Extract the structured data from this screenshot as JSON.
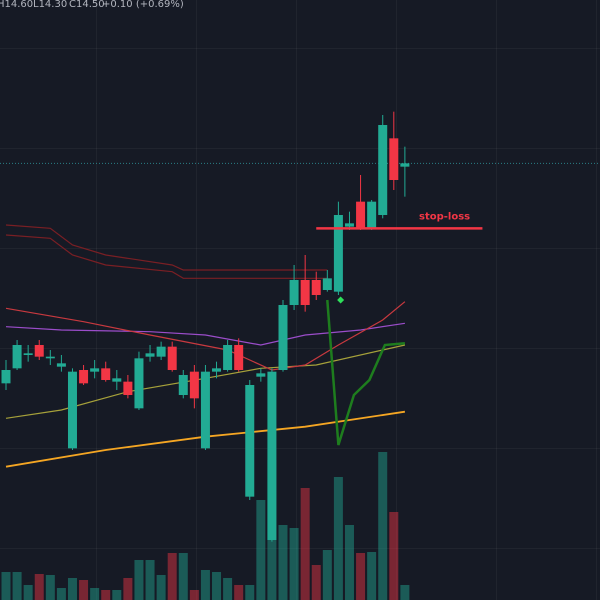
{
  "chart_data": {
    "type": "candlestick",
    "header": {
      "high": "H14.60",
      "low": "L14.30",
      "close": "C14.50",
      "change": "+0.10 (+0.69%)"
    },
    "ylim": [
      11.88,
      15.48
    ],
    "up_color": "#22ab94",
    "down_color": "#f23645",
    "candles": [
      [
        13.18,
        13.32,
        13.14,
        13.26
      ],
      [
        13.27,
        13.44,
        13.26,
        13.41
      ],
      [
        13.35,
        13.41,
        13.31,
        13.36
      ],
      [
        13.41,
        13.44,
        13.32,
        13.34
      ],
      [
        13.33,
        13.38,
        13.29,
        13.34
      ],
      [
        13.28,
        13.35,
        13.25,
        13.3
      ],
      [
        12.79,
        13.27,
        12.78,
        13.25
      ],
      [
        13.26,
        13.29,
        13.17,
        13.18
      ],
      [
        13.25,
        13.32,
        13.21,
        13.27
      ],
      [
        13.27,
        13.31,
        13.19,
        13.2
      ],
      [
        13.19,
        13.26,
        13.14,
        13.21
      ],
      [
        13.19,
        13.23,
        13.09,
        13.11
      ],
      [
        13.03,
        13.37,
        13.02,
        13.33
      ],
      [
        13.34,
        13.41,
        13.31,
        13.36
      ],
      [
        13.34,
        13.43,
        13.32,
        13.4
      ],
      [
        13.4,
        13.43,
        13.25,
        13.26
      ],
      [
        13.11,
        13.26,
        13.09,
        13.23
      ],
      [
        13.25,
        13.29,
        13.03,
        13.09
      ],
      [
        12.79,
        13.29,
        12.78,
        13.25
      ],
      [
        13.25,
        13.31,
        13.21,
        13.27
      ],
      [
        13.26,
        13.44,
        13.25,
        13.41
      ],
      [
        13.41,
        13.45,
        13.25,
        13.26
      ],
      [
        12.5,
        13.2,
        12.48,
        13.17
      ],
      [
        13.22,
        13.27,
        13.19,
        13.24
      ],
      [
        12.24,
        13.27,
        12.23,
        13.25
      ],
      [
        13.26,
        13.68,
        13.25,
        13.65
      ],
      [
        13.65,
        13.89,
        13.62,
        13.8
      ],
      [
        13.8,
        13.95,
        13.61,
        13.65
      ],
      [
        13.8,
        13.85,
        13.68,
        13.71
      ],
      [
        13.74,
        13.86,
        13.73,
        13.81
      ],
      [
        13.73,
        14.27,
        13.71,
        14.19
      ],
      [
        14.12,
        14.21,
        14.1,
        14.14
      ],
      [
        14.27,
        14.43,
        14.1,
        14.11
      ],
      [
        14.11,
        14.28,
        14.1,
        14.27
      ],
      [
        14.19,
        14.79,
        14.17,
        14.73
      ],
      [
        14.65,
        14.81,
        14.34,
        14.4
      ],
      [
        14.48,
        14.6,
        14.3,
        14.5
      ]
    ],
    "volume_lim": [
      0,
      600
    ],
    "volume": [
      28,
      28,
      15,
      26,
      25,
      12,
      22,
      20,
      12,
      10,
      10,
      22,
      40,
      40,
      25,
      47,
      47,
      10,
      30,
      28,
      22,
      15,
      15,
      100,
      140,
      75,
      72,
      112,
      35,
      50,
      123,
      75,
      47,
      48,
      148,
      88,
      15
    ],
    "series": [
      {
        "color": "#f5a623",
        "x": [
          0,
          9,
          18,
          27,
          36
        ],
        "values": [
          12.68,
          12.78,
          12.86,
          12.92,
          13.01
        ]
      },
      {
        "color": "#a6a13a",
        "x": [
          0,
          5,
          11,
          18,
          23,
          28,
          34,
          36
        ],
        "values": [
          12.97,
          13.02,
          13.13,
          13.21,
          13.27,
          13.29,
          13.38,
          13.41
        ]
      },
      {
        "color": "#9b4dca",
        "x": [
          0,
          5,
          13,
          18,
          23,
          27,
          32,
          36
        ],
        "values": [
          13.52,
          13.5,
          13.49,
          13.47,
          13.41,
          13.47,
          13.5,
          13.54
        ]
      },
      {
        "color": "#c8393f",
        "x": [
          0,
          7,
          13,
          20,
          24,
          27,
          30,
          34,
          36
        ],
        "values": [
          13.63,
          13.55,
          13.47,
          13.38,
          13.26,
          13.29,
          13.41,
          13.56,
          13.67
        ]
      },
      {
        "color": "#7a1f24",
        "x": [
          0,
          4,
          6,
          9,
          15,
          16,
          29
        ],
        "values": [
          14.13,
          14.11,
          14.01,
          13.95,
          13.89,
          13.86,
          13.86
        ]
      },
      {
        "color": "#7a1f24",
        "x": [
          0,
          4,
          6,
          9,
          15,
          16,
          29
        ],
        "values": [
          14.07,
          14.05,
          13.95,
          13.89,
          13.85,
          13.81,
          13.81
        ]
      },
      {
        "color": "#1e7d1e",
        "x": [
          29,
          30,
          31.4,
          32.8,
          34.2,
          36
        ],
        "values": [
          13.68,
          12.81,
          13.11,
          13.2,
          13.41,
          13.42
        ]
      }
    ],
    "signals": [
      {
        "x": 30.2,
        "value": 13.68,
        "color": "#2ee05a"
      }
    ],
    "price_line": {
      "value": 14.5,
      "color": "#2a7f86"
    },
    "stop_loss": {
      "label": "stop-loss",
      "value": 14.11,
      "x": [
        28,
        43
      ],
      "color": "#f23645"
    }
  }
}
